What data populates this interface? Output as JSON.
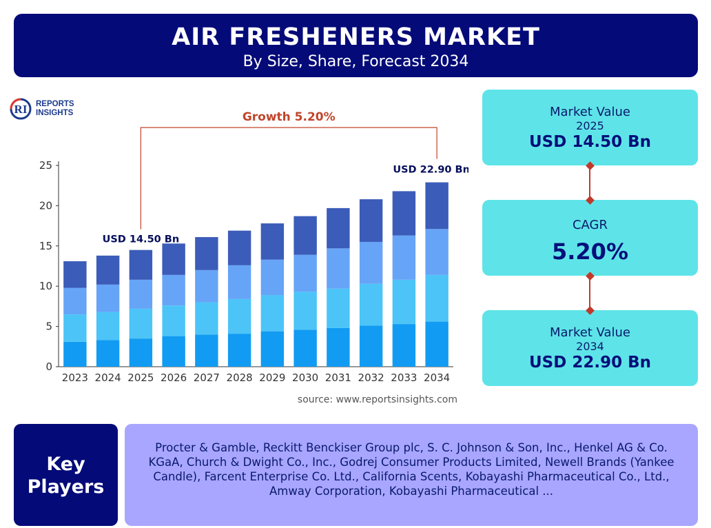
{
  "header": {
    "title": "AIR FRESHENERS MARKET",
    "subtitle": "By Size, Share, Forecast 2034"
  },
  "logo": {
    "line1": "REPORTS",
    "line2": "INSIGHTS"
  },
  "chart_data": {
    "type": "bar",
    "stacked": true,
    "categories": [
      "2023",
      "2024",
      "2025",
      "2026",
      "2027",
      "2028",
      "2029",
      "2030",
      "2031",
      "2032",
      "2033",
      "2034"
    ],
    "series": [
      {
        "values": [
          3.1,
          3.3,
          3.5,
          3.8,
          4.0,
          4.1,
          4.4,
          4.6,
          4.8,
          5.1,
          5.3,
          5.6
        ]
      },
      {
        "values": [
          3.4,
          3.5,
          3.7,
          3.8,
          4.0,
          4.3,
          4.5,
          4.7,
          4.9,
          5.2,
          5.5,
          5.8
        ]
      },
      {
        "values": [
          3.3,
          3.4,
          3.6,
          3.8,
          4.0,
          4.2,
          4.4,
          4.6,
          5.0,
          5.2,
          5.5,
          5.7
        ]
      },
      {
        "values": [
          3.3,
          3.6,
          3.7,
          3.9,
          4.1,
          4.3,
          4.5,
          4.8,
          5.0,
          5.3,
          5.5,
          5.8
        ]
      }
    ],
    "series_colors": [
      "#129bf2",
      "#4cc4f7",
      "#66a4f7",
      "#3b5cb8"
    ],
    "ylim": [
      0,
      25
    ],
    "yticks": [
      0,
      5,
      10,
      15,
      20,
      25
    ],
    "annotations": {
      "start_label": "USD 14.50 Bn",
      "end_label": "USD 22.90 Bn",
      "growth_label": "Growth 5.20%",
      "start_category": "2025",
      "end_category": "2034"
    },
    "growth_color": "#c0452a",
    "grid": false
  },
  "source": "source: www.reportsinsights.com",
  "stats": {
    "box1": {
      "label": "Market Value",
      "year": "2025",
      "value": "USD 14.50 Bn"
    },
    "box2": {
      "label": "CAGR",
      "value": "5.20%"
    },
    "box3": {
      "label": "Market Value",
      "year": "2034",
      "value": "USD 22.90 Bn"
    }
  },
  "key_players": {
    "label_line1": "Key",
    "label_line2": "Players",
    "text": "Procter & Gamble, Reckitt Benckiser Group plc, S. C. Johnson & Son, Inc., Henkel AG & Co. KGaA, Church & Dwight Co., Inc., Godrej Consumer Products Limited, Newell Brands (Yankee Candle), Farcent Enterprise Co. Ltd., California Scents, Kobayashi Pharmaceutical Co., Ltd., Amway Corporation, Kobayashi Pharmaceutical ..."
  },
  "colors": {
    "navy": "#040a78",
    "cyan_box": "#5ee4e8",
    "lavender_box": "#a8a6ff",
    "connector": "#c0392b"
  }
}
